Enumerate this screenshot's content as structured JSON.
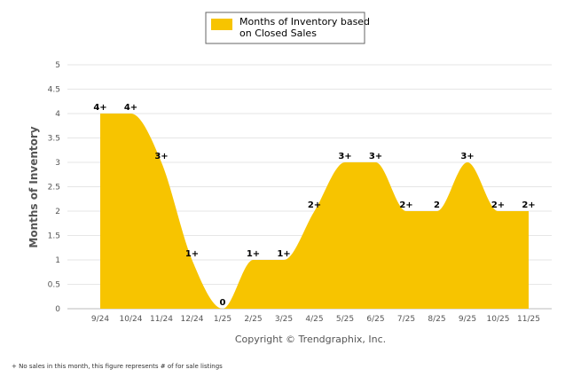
{
  "chart_data": {
    "type": "area",
    "title": "",
    "legend": [
      "Months of Inventory based",
      "on Closed Sales"
    ],
    "ylabel": "Months of Inventory",
    "xlabel": "",
    "ylim": [
      0,
      5
    ],
    "yticks": [
      "0",
      "0.5",
      "1",
      "1.5",
      "2",
      "2.5",
      "3",
      "3.5",
      "4",
      "4.5",
      "5"
    ],
    "categories": [
      "9/24",
      "10/24",
      "11/24",
      "12/24",
      "1/25",
      "2/25",
      "3/25",
      "4/25",
      "5/25",
      "6/25",
      "7/25",
      "8/25",
      "9/25",
      "10/25",
      "11/25"
    ],
    "values": [
      4,
      4,
      3,
      1,
      0,
      1,
      1,
      2,
      3,
      3,
      2,
      2,
      3,
      2,
      2
    ],
    "data_labels": [
      "4+",
      "4+",
      "3+",
      "1+",
      "0",
      "1+",
      "1+",
      "2+",
      "3+",
      "3+",
      "2+",
      "2",
      "3+",
      "2+",
      "2+"
    ],
    "series_color": "#F7C400",
    "copyright": "Copyright © Trendgraphix, Inc.",
    "footnote": "+ No sales in this month, this figure represents # of for sale listings"
  }
}
